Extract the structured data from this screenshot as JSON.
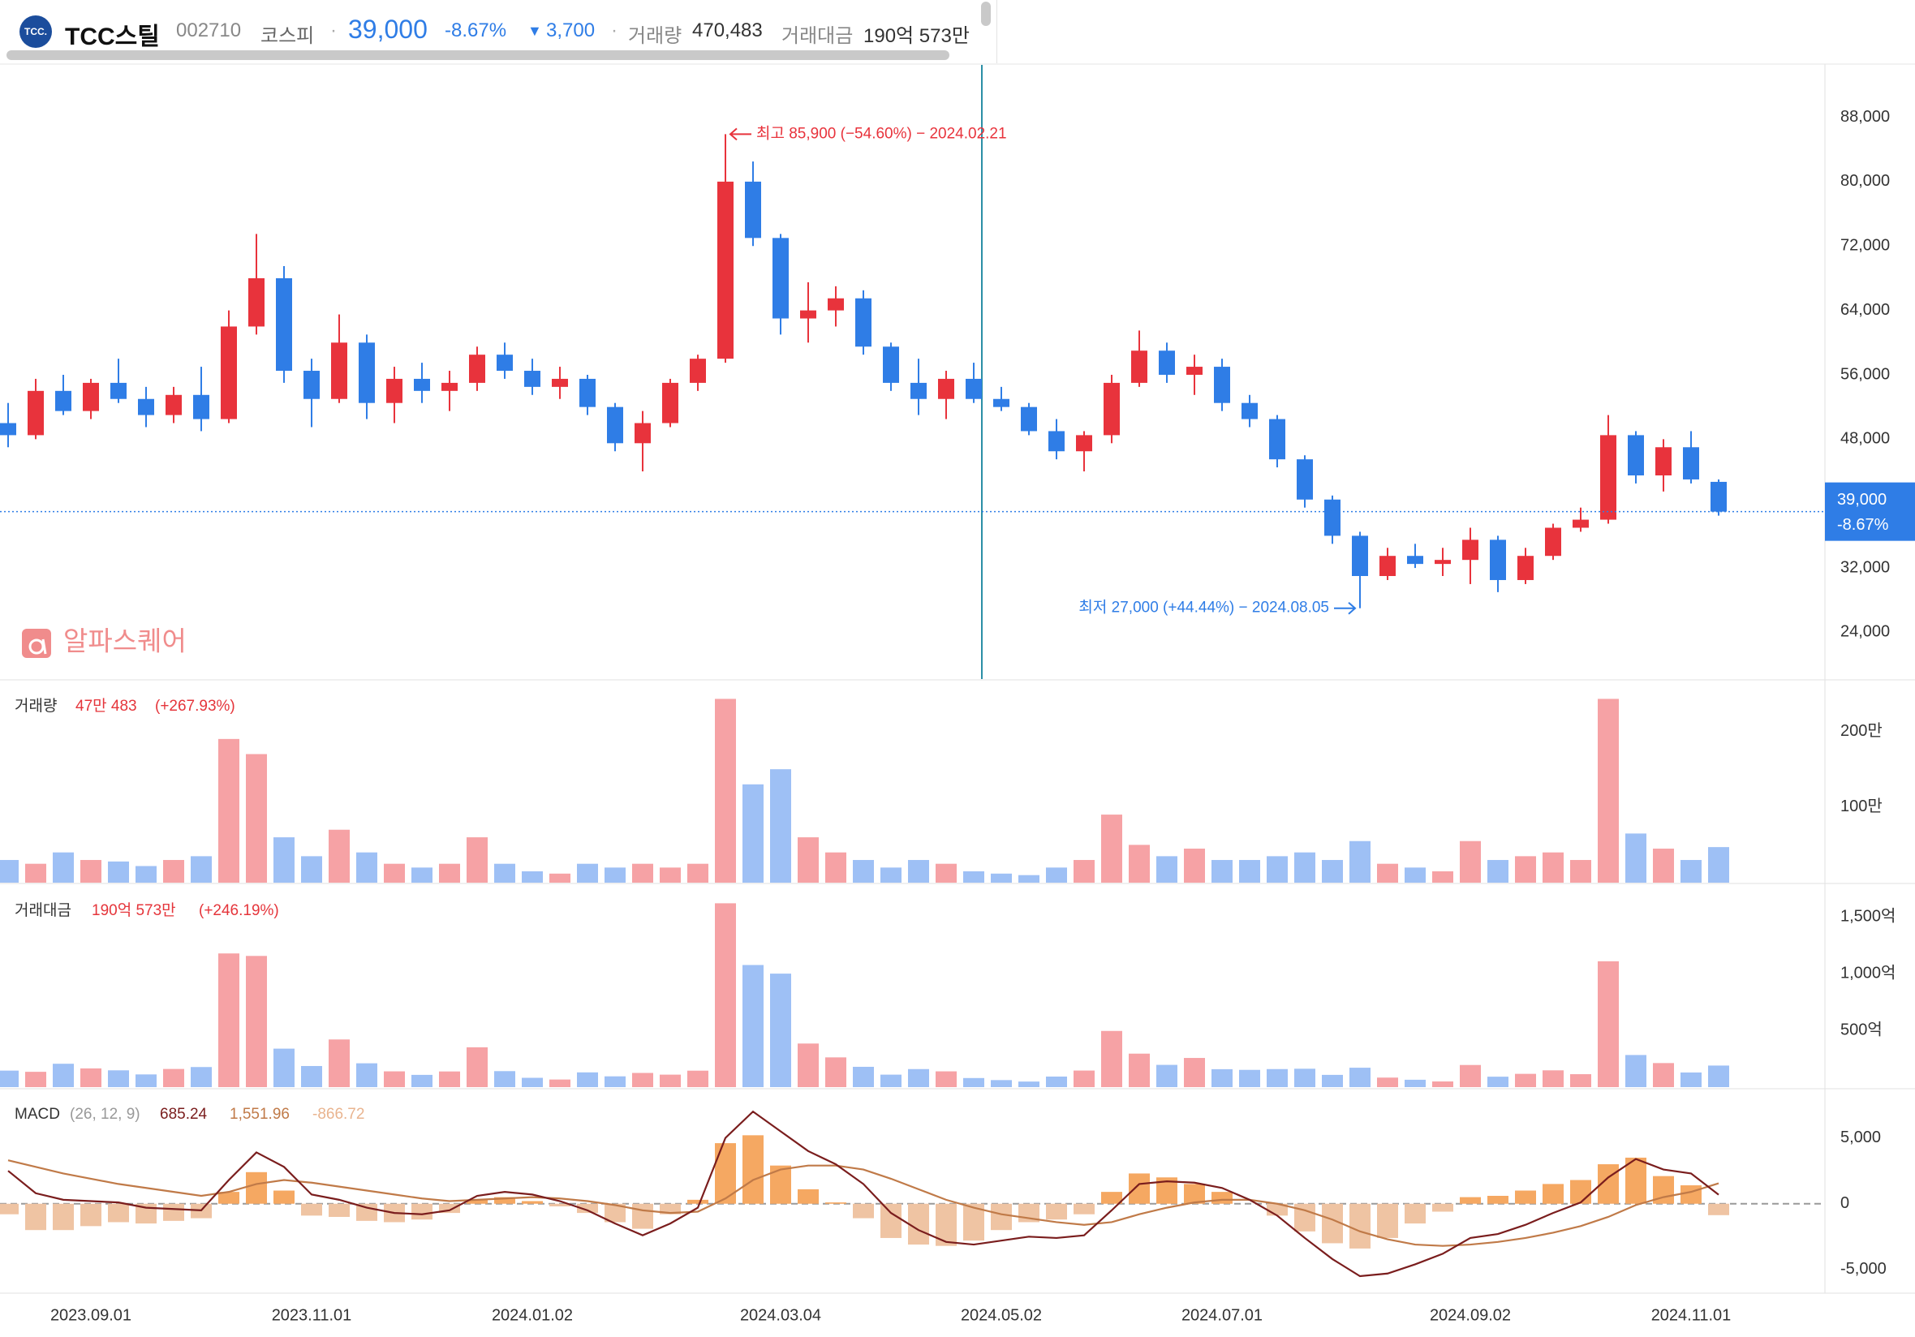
{
  "header": {
    "logo_text": "TCC.",
    "name": "TCC스틸",
    "code": "002710",
    "market": "코스피",
    "price": "39,000",
    "change_pct": "-8.67%",
    "change": "3,700",
    "volume_label": "거래량",
    "volume": "470,483",
    "value_label": "거래대금",
    "value": "190억 573만"
  },
  "watermark": "알파스퀘어",
  "chart_data": [
    {
      "type": "candlestick",
      "up_color": "#e8333c",
      "down_color": "#2f7de6",
      "categories": [
        null,
        null,
        null,
        "2023.09.01",
        null,
        null,
        null,
        null,
        null,
        null,
        null,
        "2023.11.01",
        null,
        null,
        null,
        null,
        null,
        null,
        null,
        "2024.01.02",
        null,
        null,
        null,
        null,
        null,
        null,
        null,
        null,
        "2024.03.04",
        null,
        null,
        null,
        null,
        null,
        null,
        null,
        "2024.05.02",
        null,
        null,
        null,
        null,
        null,
        null,
        null,
        "2024.07.01",
        null,
        null,
        null,
        null,
        null,
        null,
        null,
        null,
        "2024.09.02",
        null,
        null,
        null,
        null,
        null,
        null,
        null,
        "2024.11.01",
        null
      ],
      "open": [
        50000,
        48500,
        54000,
        51500,
        55000,
        53000,
        51000,
        53500,
        50500,
        62000,
        68000,
        56500,
        53000,
        60000,
        52500,
        55500,
        54000,
        55000,
        58500,
        56500,
        54500,
        55500,
        52000,
        47500,
        50000,
        55000,
        58000,
        80000,
        73000,
        63000,
        64000,
        65500,
        59500,
        55000,
        53000,
        55500,
        53000,
        52000,
        49000,
        46500,
        48500,
        55000,
        59000,
        56000,
        57000,
        52500,
        50500,
        45500,
        40500,
        36000,
        31000,
        33500,
        32500,
        33000,
        35500,
        30500,
        33500,
        37000,
        38000,
        48500,
        43500,
        47000,
        42700
      ],
      "high": [
        52500,
        55500,
        56000,
        55500,
        58000,
        54500,
        54500,
        57000,
        64000,
        73500,
        69500,
        58000,
        63500,
        61000,
        57000,
        57500,
        56500,
        59500,
        60000,
        58000,
        57000,
        56000,
        52500,
        51500,
        55500,
        58500,
        85900,
        82500,
        73500,
        67500,
        67000,
        66500,
        60000,
        58000,
        56500,
        57500,
        54500,
        52500,
        50500,
        49000,
        56000,
        61500,
        60000,
        58500,
        58000,
        53500,
        51000,
        46000,
        41000,
        36500,
        34500,
        35000,
        34500,
        37000,
        36000,
        34500,
        37500,
        39500,
        51000,
        49000,
        48000,
        49000,
        43000
      ],
      "low": [
        47000,
        48000,
        51000,
        50500,
        52500,
        49500,
        50000,
        49000,
        50000,
        61000,
        55000,
        49500,
        52500,
        50500,
        50000,
        52500,
        51500,
        54000,
        55500,
        53500,
        53000,
        51000,
        46500,
        44000,
        49500,
        54000,
        57500,
        72000,
        61000,
        60000,
        62000,
        58500,
        54000,
        51000,
        50500,
        52500,
        51500,
        48500,
        45500,
        44000,
        47500,
        54500,
        55000,
        53500,
        51500,
        49500,
        44500,
        39500,
        35000,
        27000,
        30500,
        32000,
        31000,
        30000,
        29000,
        30000,
        33000,
        36500,
        37500,
        42500,
        41500,
        42500,
        38500
      ],
      "close": [
        48500,
        54000,
        51500,
        55000,
        53000,
        51000,
        53500,
        50500,
        62000,
        68000,
        56500,
        53000,
        60000,
        52500,
        55500,
        54000,
        55000,
        58500,
        56500,
        54500,
        55500,
        52000,
        47500,
        50000,
        55000,
        58000,
        80000,
        73000,
        63000,
        64000,
        65500,
        59500,
        55000,
        53000,
        55500,
        53000,
        52000,
        49000,
        46500,
        48500,
        55000,
        59000,
        56000,
        57000,
        52500,
        50500,
        45500,
        40500,
        36000,
        31000,
        33500,
        32500,
        33000,
        35500,
        30500,
        33500,
        37000,
        38000,
        48500,
        43500,
        47000,
        43000,
        39000
      ],
      "ylim": [
        18200,
        94200
      ],
      "yticks": [
        {
          "value": 88000,
          "label": "88,000"
        },
        {
          "value": 80000,
          "label": "80,000"
        },
        {
          "value": 72000,
          "label": "72,000"
        },
        {
          "value": 64000,
          "label": "64,000"
        },
        {
          "value": 56000,
          "label": "56,000"
        },
        {
          "value": 48000,
          "label": "48,000"
        },
        {
          "value": 32000,
          "label": "32,000"
        },
        {
          "value": 24000,
          "label": "24,000"
        }
      ],
      "annotations": {
        "high": "최고 85,900 (−54.60%) − 2024.02.21",
        "low": "최저 27,000 (+44.44%) − 2024.08.05"
      }
    },
    {
      "type": "bar",
      "title": "거래량",
      "legend_value": "47만 483",
      "legend_change": "(+267.93%)",
      "up_color": "#f6a2a5",
      "down_color": "#9ec0f5",
      "values": [
        300000,
        250000,
        400000,
        300000,
        280000,
        220000,
        300000,
        350000,
        1900000,
        1700000,
        600000,
        350000,
        700000,
        400000,
        250000,
        200000,
        250000,
        600000,
        250000,
        150000,
        120000,
        250000,
        200000,
        250000,
        200000,
        250000,
        2430000,
        1300000,
        1500000,
        600000,
        400000,
        300000,
        200000,
        300000,
        250000,
        150000,
        120000,
        100000,
        200000,
        300000,
        900000,
        500000,
        350000,
        450000,
        300000,
        300000,
        350000,
        400000,
        300000,
        550000,
        250000,
        200000,
        150000,
        550000,
        300000,
        350000,
        400000,
        300000,
        2430000,
        650000,
        450000,
        300000,
        470483
      ],
      "ylim": [
        0,
        2660000
      ],
      "yticks": [
        {
          "value": 2000000,
          "label": "200만"
        },
        {
          "value": 1000000,
          "label": "100만"
        }
      ]
    },
    {
      "type": "bar",
      "title": "거래대금",
      "legend_value": "190억 573만",
      "legend_change": "(+246.19%)",
      "up_color": "#f6a2a5",
      "down_color": "#9ec0f5",
      "values": [
        145.5,
        135,
        206,
        165,
        148,
        112,
        160,
        177,
        1178,
        1156,
        339,
        186,
        420,
        210,
        139,
        108,
        138,
        351,
        141,
        82,
        67,
        130,
        95,
        125,
        110,
        145,
        1620,
        1076,
        1000,
        384,
        262,
        179,
        110,
        159,
        139,
        80,
        62,
        49,
        93,
        146,
        495,
        295,
        196,
        257,
        158,
        152,
        159,
        162,
        108,
        171,
        84,
        65,
        50,
        195,
        92,
        117,
        148,
        114,
        1109,
        283,
        212,
        129,
        190.0573
      ],
      "ylim": [
        0,
        1780
      ],
      "yticks": [
        {
          "value": 1500,
          "label": "1,500억"
        },
        {
          "value": 1000,
          "label": "1,000억"
        },
        {
          "value": 500,
          "label": "500억"
        }
      ]
    },
    {
      "type": "macd",
      "title": "MACD",
      "params": "(26, 12, 9)",
      "series": [
        {
          "legend_label": "685.24",
          "color": "#7a1d1d",
          "values": [
            2500,
            800,
            300,
            200,
            100,
            -300,
            -400,
            -500,
            1800,
            3900,
            2800,
            700,
            300,
            -300,
            -700,
            -800,
            -500,
            600,
            900,
            700,
            200,
            -500,
            -1500,
            -2400,
            -1500,
            -300,
            5000,
            7000,
            5500,
            4000,
            3000,
            1500,
            -700,
            -2000,
            -2900,
            -3100,
            -2800,
            -2500,
            -2600,
            -2400,
            -500,
            1500,
            1700,
            1600,
            1200,
            300,
            -900,
            -2600,
            -4200,
            -5500,
            -5300,
            -4600,
            -3800,
            -2600,
            -2300,
            -1600,
            -700,
            100,
            2000,
            3400,
            2600,
            2300,
            685.24
          ]
        },
        {
          "legend_label": "1,551.96",
          "color": "#c07a48",
          "values": [
            3300,
            2800,
            2300,
            1900,
            1500,
            1200,
            900,
            600,
            900,
            1500,
            1800,
            1600,
            1300,
            1000,
            700,
            400,
            200,
            300,
            400,
            500,
            400,
            200,
            -100,
            -500,
            -700,
            -600,
            400,
            1800,
            2600,
            2900,
            2900,
            2600,
            1900,
            1100,
            300,
            -300,
            -800,
            -1100,
            -1400,
            -1600,
            -1400,
            -800,
            -300,
            100,
            300,
            300,
            0,
            -500,
            -1200,
            -2100,
            -2700,
            -3100,
            -3200,
            -3100,
            -2900,
            -2600,
            -2200,
            -1700,
            -1000,
            -100,
            500,
            900,
            1551.96
          ]
        },
        {
          "legend_label": "-866.72",
          "color": "#f5a862",
          "neg_color": "#efc4a3",
          "values": [
            -800,
            -2000,
            -2000,
            -1700,
            -1400,
            -1500,
            -1300,
            -1100,
            900,
            2400,
            1000,
            -900,
            -1000,
            -1300,
            -1400,
            -1200,
            -700,
            300,
            500,
            200,
            -200,
            -700,
            -1400,
            -1900,
            -800,
            300,
            4600,
            5200,
            2900,
            1100,
            100,
            -1100,
            -2600,
            -3100,
            -3200,
            -2800,
            -2000,
            -1400,
            -1200,
            -800,
            900,
            2300,
            2000,
            1500,
            900,
            0,
            -900,
            -2100,
            -3000,
            -3400,
            -2600,
            -1500,
            -600,
            500,
            600,
            1000,
            1500,
            1800,
            3000,
            3500,
            2100,
            1400,
            -866.72
          ]
        }
      ],
      "ylim": [
        -6670,
        8610
      ],
      "yticks": [
        {
          "value": 5000,
          "label": "5,000"
        },
        0,
        {
          "value": -5000,
          "label": "-5,000"
        }
      ]
    }
  ]
}
